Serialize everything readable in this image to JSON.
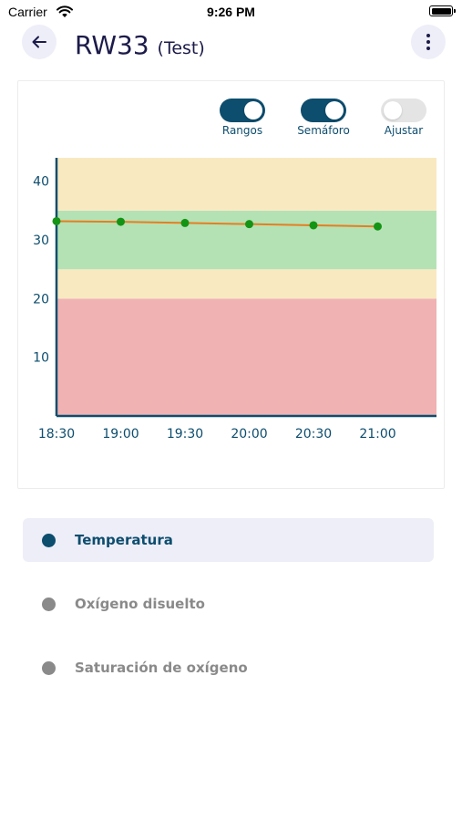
{
  "status_bar": {
    "carrier": "Carrier",
    "time": "9:26 PM"
  },
  "header": {
    "title": "RW33",
    "subtitle": "(Test)"
  },
  "toggles": [
    {
      "label": "Rangos",
      "state": "on"
    },
    {
      "label": "Semáforo",
      "state": "on"
    },
    {
      "label": "Ajustar",
      "state": "off"
    }
  ],
  "chart_data": {
    "type": "line",
    "x": [
      "18:30",
      "19:00",
      "19:30",
      "20:00",
      "20:30",
      "21:00"
    ],
    "x_ticks": [
      "18:30",
      "19:00",
      "19:30",
      "20:00",
      "20:30",
      "21:00"
    ],
    "y_ticks": [
      "40",
      "30",
      "20",
      "10"
    ],
    "series": [
      {
        "values": [
          33.2,
          33.1,
          32.9,
          32.7,
          32.5,
          32.3
        ]
      }
    ],
    "ylim": [
      0,
      44
    ],
    "bands": [
      {
        "from": 0,
        "to": 20,
        "color": "#f0b2b2"
      },
      {
        "from": 20,
        "to": 25,
        "color": "#f9e9c1"
      },
      {
        "from": 25,
        "to": 35,
        "color": "#b4e2b4"
      },
      {
        "from": 35,
        "to": 44,
        "color": "#f9e9c1"
      }
    ],
    "line_color": "#e67e22",
    "point_color": "#149414",
    "axis_color": "#0d4d6e",
    "grid": false
  },
  "series_list": [
    {
      "label": "Temperatura",
      "active": true,
      "dot_color": "#0d4d6e",
      "text_color": "#0d4d6e"
    },
    {
      "label": "Oxígeno disuelto",
      "active": false,
      "dot_color": "#8a8a8a",
      "text_color": "#8a8a8a"
    },
    {
      "label": "Saturación de oxígeno",
      "active": false,
      "dot_color": "#8a8a8a",
      "text_color": "#8a8a8a"
    }
  ]
}
